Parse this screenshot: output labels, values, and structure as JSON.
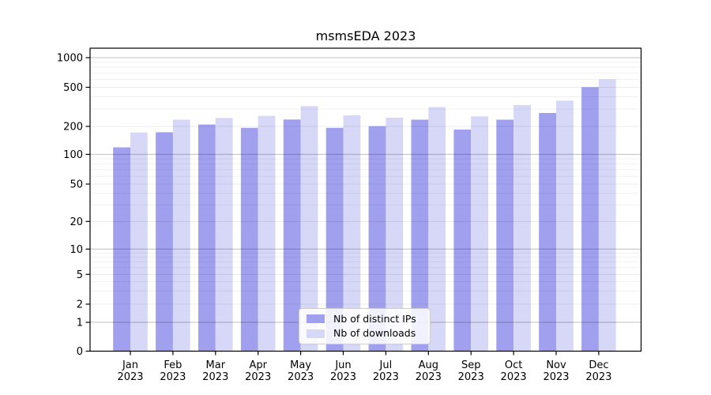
{
  "figure": {
    "background": "#ffffff"
  },
  "chart_data": {
    "type": "bar",
    "title": "msmsEDA 2023",
    "categories": [
      {
        "month": "Jan",
        "year": "2023"
      },
      {
        "month": "Feb",
        "year": "2023"
      },
      {
        "month": "Mar",
        "year": "2023"
      },
      {
        "month": "Apr",
        "year": "2023"
      },
      {
        "month": "May",
        "year": "2023"
      },
      {
        "month": "Jun",
        "year": "2023"
      },
      {
        "month": "Jul",
        "year": "2023"
      },
      {
        "month": "Aug",
        "year": "2023"
      },
      {
        "month": "Sep",
        "year": "2023"
      },
      {
        "month": "Oct",
        "year": "2023"
      },
      {
        "month": "Nov",
        "year": "2023"
      },
      {
        "month": "Dec",
        "year": "2023"
      }
    ],
    "series": [
      {
        "name": "Nb of distinct IPs",
        "color": "#a0a0ee",
        "values": [
          119,
          173,
          209,
          193,
          235,
          193,
          201,
          234,
          185,
          234,
          274,
          502
        ]
      },
      {
        "name": "Nb of downloads",
        "color": "#d7d7f7",
        "values": [
          172,
          234,
          244,
          256,
          322,
          259,
          245,
          314,
          253,
          330,
          366,
          603
        ]
      }
    ],
    "y_axis": {
      "scale": "log-like (custom ticks, log-interpolated)",
      "ticks": [
        0,
        1,
        2,
        5,
        10,
        20,
        50,
        100,
        200,
        500,
        1000
      ],
      "range": [
        0,
        1260
      ]
    },
    "grid": true,
    "legend_position": "lower center"
  },
  "colors": {
    "spine": "#000000",
    "major_grid": "rgba(0,0,0,0.25)",
    "mid_grid": "rgba(0,0,0,0.10)",
    "minor_grid": "rgba(0,0,0,0.07)",
    "text": "#000000"
  }
}
